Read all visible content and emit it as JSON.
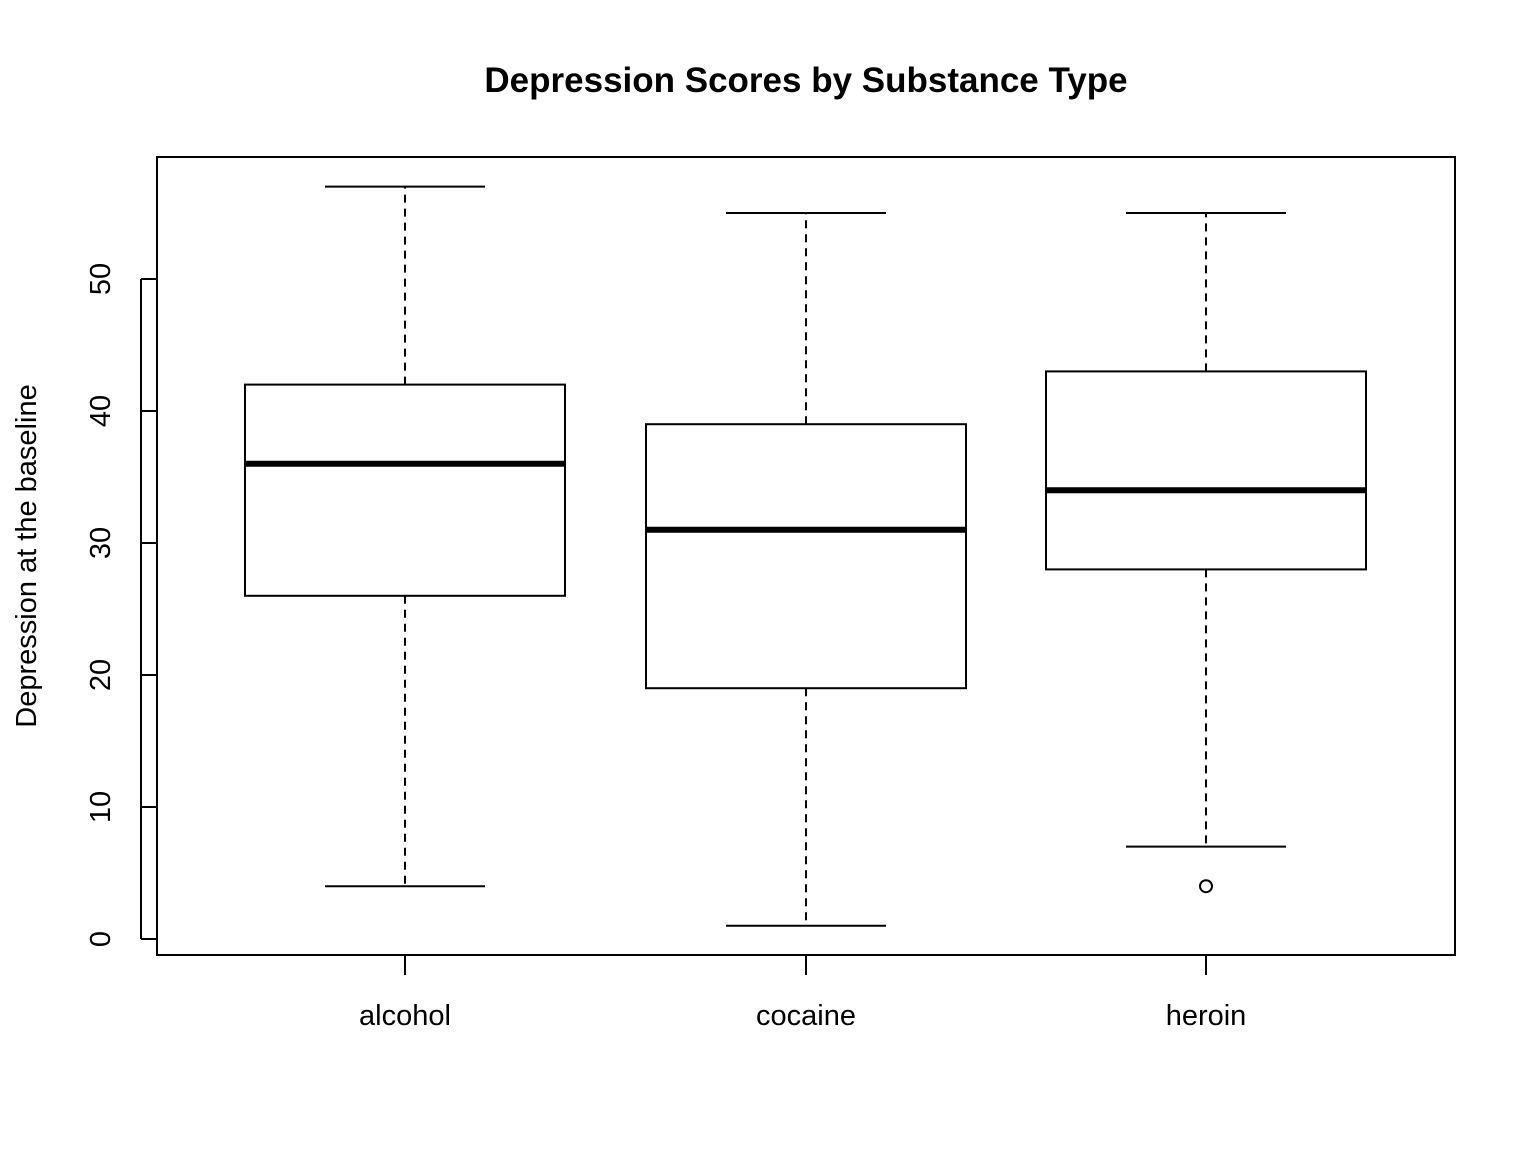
{
  "chart_data": {
    "type": "boxplot",
    "title": "Depression Scores by Substance Type",
    "xlabel": "",
    "ylabel": "Depression at the baseline",
    "ylim": [
      0,
      58.3
    ],
    "yticks": [
      0,
      10,
      20,
      30,
      40,
      50
    ],
    "grid": false,
    "categories": [
      "alcohol",
      "cocaine",
      "heroin"
    ],
    "boxes": [
      {
        "category": "alcohol",
        "whisker_low": 4,
        "q1": 26,
        "median": 36,
        "q3": 42,
        "whisker_high": 57,
        "outliers": []
      },
      {
        "category": "cocaine",
        "whisker_low": 1,
        "q1": 19,
        "median": 31,
        "q3": 39,
        "whisker_high": 55,
        "outliers": []
      },
      {
        "category": "heroin",
        "whisker_low": 7,
        "q1": 28,
        "median": 34,
        "q3": 43,
        "whisker_high": 55,
        "outliers": [
          4
        ]
      }
    ],
    "colors": {
      "box_fill": "#ffffff",
      "stroke": "#000000"
    }
  }
}
